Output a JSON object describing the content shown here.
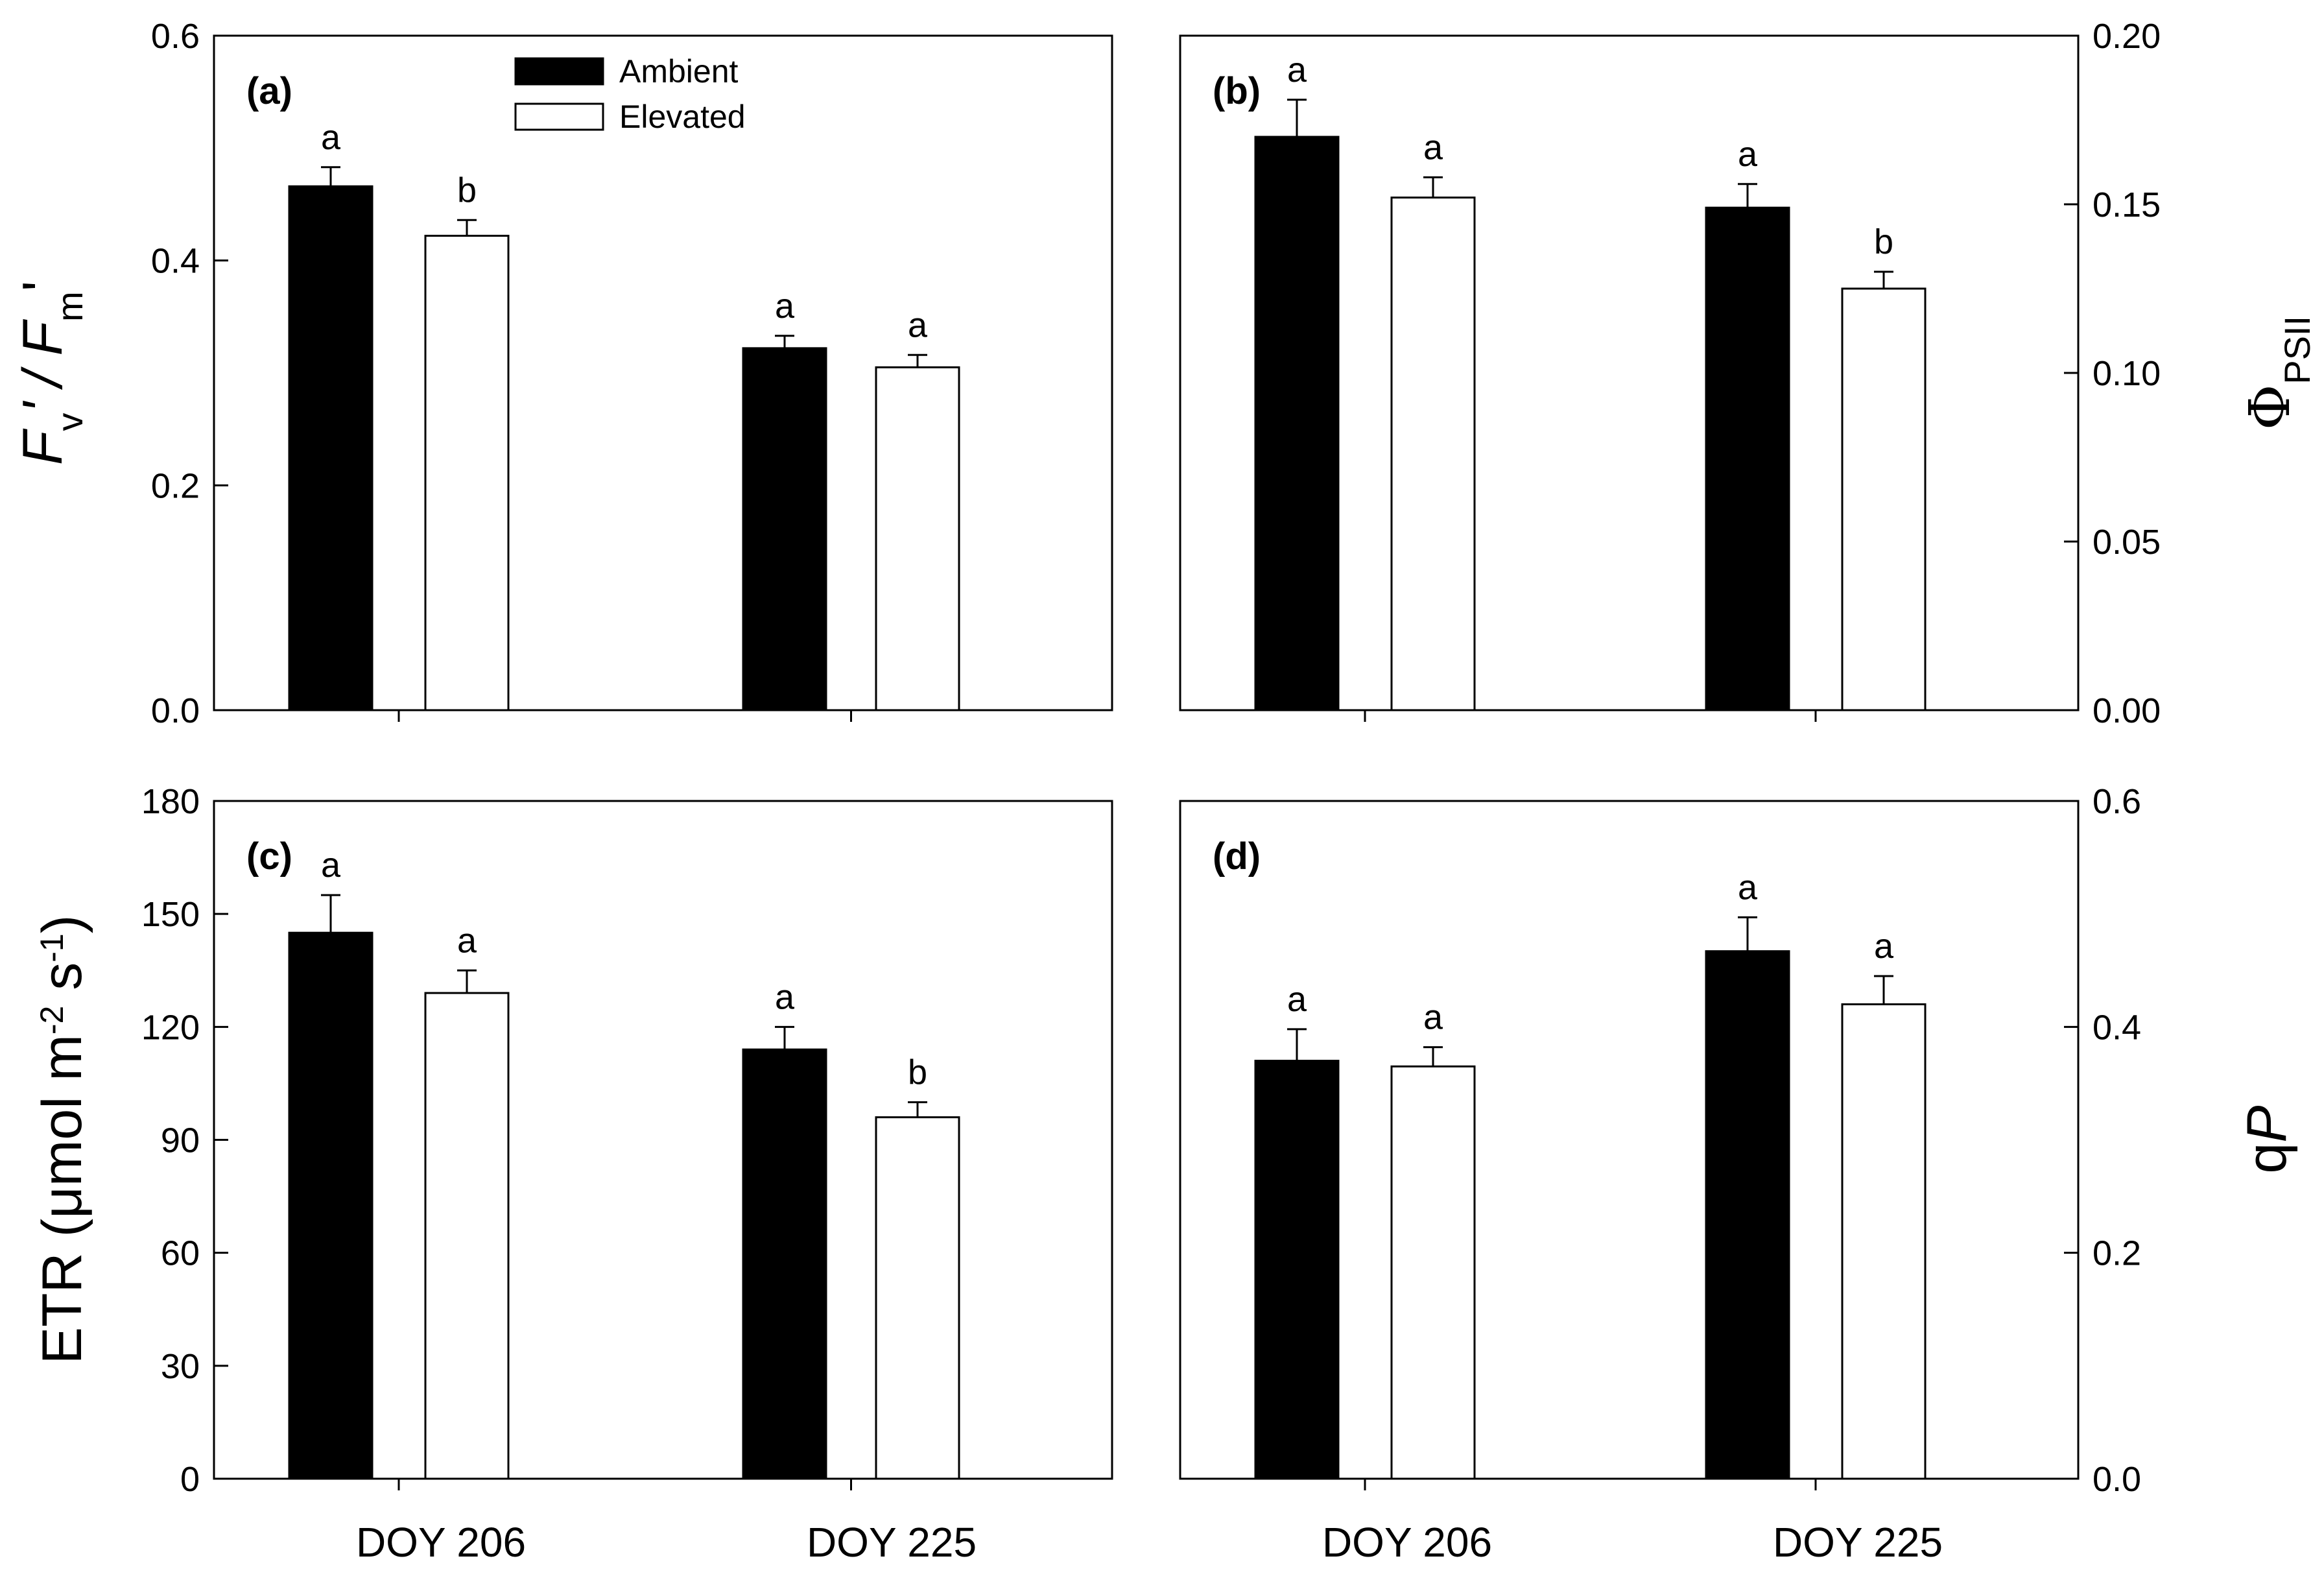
{
  "chart_data": [
    {
      "panel": "(a)",
      "type": "bar",
      "categories": [
        "DOY 206",
        "DOY 225"
      ],
      "series": [
        {
          "name": "Ambient",
          "color": "#000000",
          "values": [
            0.466,
            0.322
          ],
          "errors": [
            0.017,
            0.011
          ],
          "letters": [
            "a",
            "a"
          ]
        },
        {
          "name": "Elevated",
          "color": "#ffffff",
          "values": [
            0.422,
            0.305
          ],
          "errors": [
            0.014,
            0.011
          ],
          "letters": [
            "b",
            "a"
          ]
        }
      ],
      "ylabel_main": "F",
      "ylabel_v": "v",
      "ylabel_mid": "' / F",
      "ylabel_m": "m",
      "ylabel_end": "'",
      "ylim": [
        0,
        0.6
      ],
      "yticks": [
        "0.0",
        "0.2",
        "0.4",
        "0.6"
      ],
      "ytick_values": [
        0,
        0.2,
        0.4,
        0.6
      ],
      "y_axis_side": "left",
      "legend": "top-center"
    },
    {
      "panel": "(b)",
      "type": "bar",
      "categories": [
        "DOY 206",
        "DOY 225"
      ],
      "series": [
        {
          "name": "Ambient",
          "color": "#000000",
          "values": [
            0.17,
            0.149
          ],
          "errors": [
            0.011,
            0.007
          ],
          "letters": [
            "a",
            "a"
          ]
        },
        {
          "name": "Elevated",
          "color": "#ffffff",
          "values": [
            0.152,
            0.125
          ],
          "errors": [
            0.006,
            0.005
          ],
          "letters": [
            "a",
            "b"
          ]
        }
      ],
      "ylabel_main": "Φ",
      "ylabel_sub": "PSII",
      "ylim": [
        0,
        0.2
      ],
      "yticks": [
        "0.00",
        "0.05",
        "0.10",
        "0.15",
        "0.20"
      ],
      "ytick_values": [
        0,
        0.05,
        0.1,
        0.15,
        0.2
      ],
      "y_axis_side": "right"
    },
    {
      "panel": "(c)",
      "type": "bar",
      "categories": [
        "DOY 206",
        "DOY 225"
      ],
      "series": [
        {
          "name": "Ambient",
          "color": "#000000",
          "values": [
            145,
            114
          ],
          "errors": [
            10,
            6
          ],
          "letters": [
            "a",
            "a"
          ]
        },
        {
          "name": "Elevated",
          "color": "#ffffff",
          "values": [
            129,
            96
          ],
          "errors": [
            6,
            4
          ],
          "letters": [
            "a",
            "b"
          ]
        }
      ],
      "ylabel_pre": "ETR (μmol m",
      "ylabel_sup1": "-2",
      "ylabel_mid": " s",
      "ylabel_sup2": "-1",
      "ylabel_end": ")",
      "ylim": [
        0,
        180
      ],
      "yticks": [
        "0",
        "30",
        "60",
        "90",
        "120",
        "150",
        "180"
      ],
      "ytick_values": [
        0,
        30,
        60,
        90,
        120,
        150,
        180
      ],
      "y_axis_side": "left"
    },
    {
      "panel": "(d)",
      "type": "bar",
      "categories": [
        "DOY 206",
        "DOY 225"
      ],
      "series": [
        {
          "name": "Ambient",
          "color": "#000000",
          "values": [
            0.37,
            0.467
          ],
          "errors": [
            0.028,
            0.03
          ],
          "letters": [
            "a",
            "a"
          ]
        },
        {
          "name": "Elevated",
          "color": "#ffffff",
          "values": [
            0.365,
            0.42
          ],
          "errors": [
            0.017,
            0.025
          ],
          "letters": [
            "a",
            "a"
          ]
        }
      ],
      "ylabel_pre": "q",
      "ylabel_italic": "P",
      "ylim": [
        0,
        0.6
      ],
      "yticks": [
        "0.0",
        "0.2",
        "0.4",
        "0.6"
      ],
      "ytick_values": [
        0,
        0.2,
        0.4,
        0.6
      ],
      "y_axis_side": "right"
    }
  ],
  "legend": {
    "ambient_label": "Ambient",
    "elevated_label": "Elevated"
  }
}
